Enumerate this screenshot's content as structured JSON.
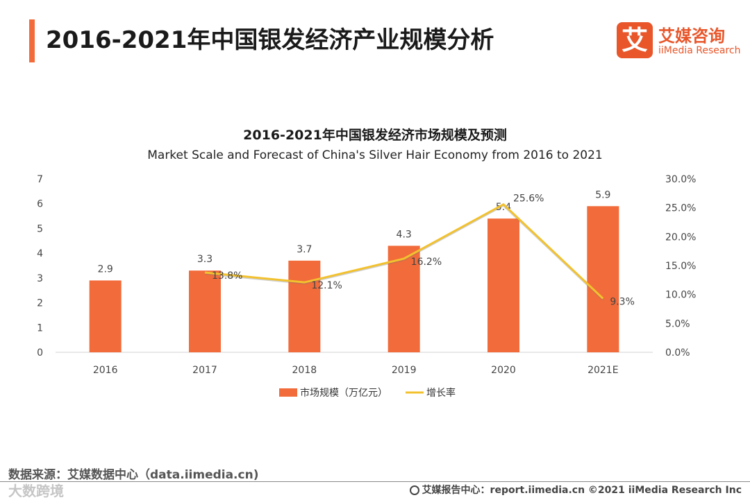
{
  "header": {
    "title": "2016-2021年中国银发经济产业规模分析",
    "accent_color": "#f26b3a"
  },
  "logo": {
    "mark": "艾",
    "name_cn": "艾媒咨询",
    "name_en": "iiMedia Research",
    "color": "#e8562a"
  },
  "chart_data": {
    "type": "bar",
    "title": "2016-2021年中国银发经济市场规模及预测",
    "subtitle": "Market Scale and Forecast of China's Silver Hair Economy from 2016 to 2021",
    "categories": [
      "2016",
      "2017",
      "2018",
      "2019",
      "2020",
      "2021E"
    ],
    "series": [
      {
        "name": "市场规模（万亿元）",
        "type": "bar",
        "axis": "left",
        "values": [
          2.9,
          3.3,
          3.7,
          4.3,
          5.4,
          5.9
        ],
        "labels": [
          "2.9",
          "3.3",
          "3.7",
          "4.3",
          "5.4",
          "5.9"
        ],
        "color": "#f26b3a"
      },
      {
        "name": "增长率",
        "type": "line",
        "axis": "right",
        "values": [
          null,
          13.8,
          12.1,
          16.2,
          25.6,
          9.3
        ],
        "labels": [
          "",
          "13.8%",
          "12.1%",
          "16.2%",
          "25.6%",
          "9.3%"
        ],
        "color": "#f2c12e"
      }
    ],
    "ylim": [
      0,
      7
    ],
    "yticks": [
      "0",
      "1",
      "2",
      "3",
      "4",
      "5",
      "6",
      "7"
    ],
    "y2lim": [
      0,
      30
    ],
    "y2ticks": [
      "0.0%",
      "5.0%",
      "10.0%",
      "15.0%",
      "20.0%",
      "25.0%",
      "30.0%"
    ],
    "legend_position": "bottom-center",
    "grid": false
  },
  "footer": {
    "source": "数据来源：艾媒数据中心（data.iimedia.cn)",
    "report": "艾媒报告中心：report.iimedia.cn   ©2021  iiMedia Research  Inc",
    "watermark": "大数跨境"
  }
}
